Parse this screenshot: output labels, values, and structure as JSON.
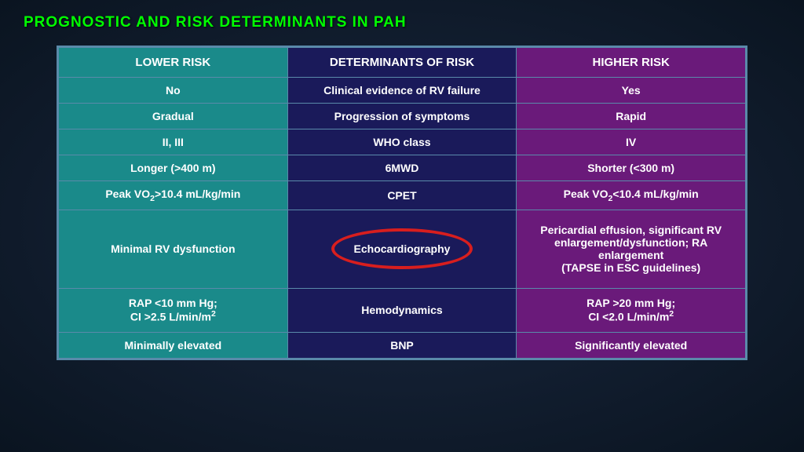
{
  "title": "PROGNOSTIC AND RISK DETERMINANTS IN PAH",
  "colors": {
    "title": "#00ff00",
    "lower_bg": "#1a8a8a",
    "mid_bg": "#1a1a5a",
    "higher_bg": "#6a1a7a",
    "border": "#5a8aaa",
    "highlight_ring": "#d81e1e",
    "background_dark": "#0a1628"
  },
  "headers": {
    "lower": "LOWER RISK",
    "mid": "DETERMINANTS OF RISK",
    "higher": "HIGHER RISK"
  },
  "rows": [
    {
      "lower": "No",
      "mid": "Clinical evidence of RV failure",
      "higher": "Yes"
    },
    {
      "lower": "Gradual",
      "mid": "Progression of symptoms",
      "higher": "Rapid"
    },
    {
      "lower": "II, III",
      "mid": "WHO class",
      "higher": "IV"
    },
    {
      "lower": "Longer (>400 m)",
      "mid": "6MWD",
      "higher": "Shorter (<300 m)"
    },
    {
      "lower": "Peak VO₂>10.4 mL/kg/min",
      "mid": "CPET",
      "higher": "Peak VO₂<10.4 mL/kg/min"
    },
    {
      "lower": "Minimal RV dysfunction",
      "mid": "Echocardiography",
      "higher": "Pericardial effusion, significant RV enlargement/dysfunction; RA enlargement\n(TAPSE in ESC guidelines)",
      "highlighted": true,
      "tall": true
    },
    {
      "lower": "RAP <10 mm Hg;\nCI >2.5 L/min/m²",
      "mid": "Hemodynamics",
      "higher": "RAP >20 mm Hg;\nCI <2.0 L/min/m²",
      "med_tall": true
    },
    {
      "lower": "Minimally elevated",
      "mid": "BNP",
      "higher": "Significantly elevated"
    }
  ]
}
